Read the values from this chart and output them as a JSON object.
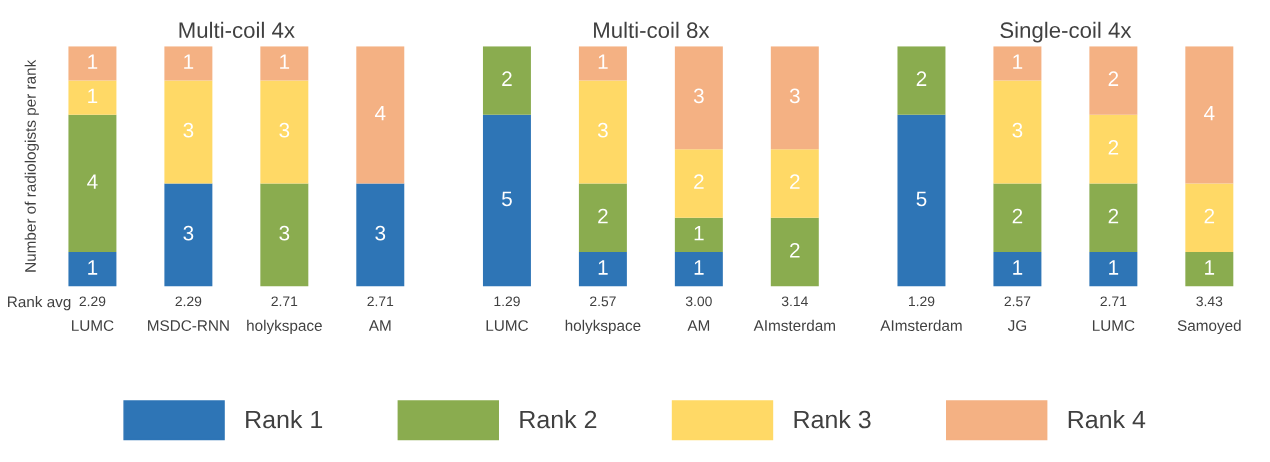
{
  "chart_data": [
    {
      "type": "bar",
      "stacked": true,
      "data_labels": true,
      "legend": "bottom",
      "title": "Multi-coil 4x",
      "ylabel": "Number of radiologists per rank",
      "categories": [
        "LUMC",
        "MSDC-RNN",
        "holykspace",
        "AM"
      ],
      "series": [
        {
          "name": "Rank 1",
          "color": "#2e75b6",
          "values": [
            1,
            3,
            null,
            3
          ]
        },
        {
          "name": "Rank 2",
          "color": "#8aac4f",
          "values": [
            4,
            null,
            3,
            null
          ]
        },
        {
          "name": "Rank 3",
          "color": "#ffd966",
          "values": [
            1,
            3,
            3,
            null
          ]
        },
        {
          "name": "Rank 4",
          "color": "#f4b183",
          "values": [
            1,
            1,
            1,
            4
          ]
        }
      ],
      "annotations": [
        "Rank avg",
        "2.29",
        "2.29",
        "2.71",
        "2.71"
      ]
    },
    {
      "type": "bar",
      "stacked": true,
      "data_labels": true,
      "title": "Multi-coil 8x",
      "categories": [
        "LUMC",
        "holykspace",
        "AM",
        "AImsterdam"
      ],
      "series": [
        {
          "color": "#2e75b6",
          "values": [
            5,
            1,
            1,
            null
          ]
        },
        {
          "color": "#8aac4f",
          "values": [
            2,
            2,
            1,
            2
          ]
        },
        {
          "color": "#ffd966",
          "values": [
            null,
            3,
            2,
            2
          ]
        },
        {
          "color": "#f4b183",
          "values": [
            null,
            1,
            3,
            3
          ]
        }
      ],
      "annotations": [
        "1.29",
        "2.57",
        "3.00",
        "3.14"
      ]
    },
    {
      "type": "bar",
      "stacked": true,
      "data_labels": true,
      "title": "Single-coil 4x",
      "categories": [
        "AImsterdam",
        "JG",
        "LUMC",
        "Samoyed"
      ],
      "series": [
        {
          "color": "#2e75b6",
          "values": [
            5,
            1,
            1,
            null
          ]
        },
        {
          "color": "#8aac4f",
          "values": [
            2,
            2,
            2,
            1
          ]
        },
        {
          "color": "#ffd966",
          "values": [
            null,
            3,
            2,
            2
          ]
        },
        {
          "color": "#f4b183",
          "values": [
            null,
            1,
            2,
            4
          ]
        }
      ],
      "annotations": [
        "1.29",
        "2.57",
        "2.71",
        "3.43"
      ]
    }
  ]
}
